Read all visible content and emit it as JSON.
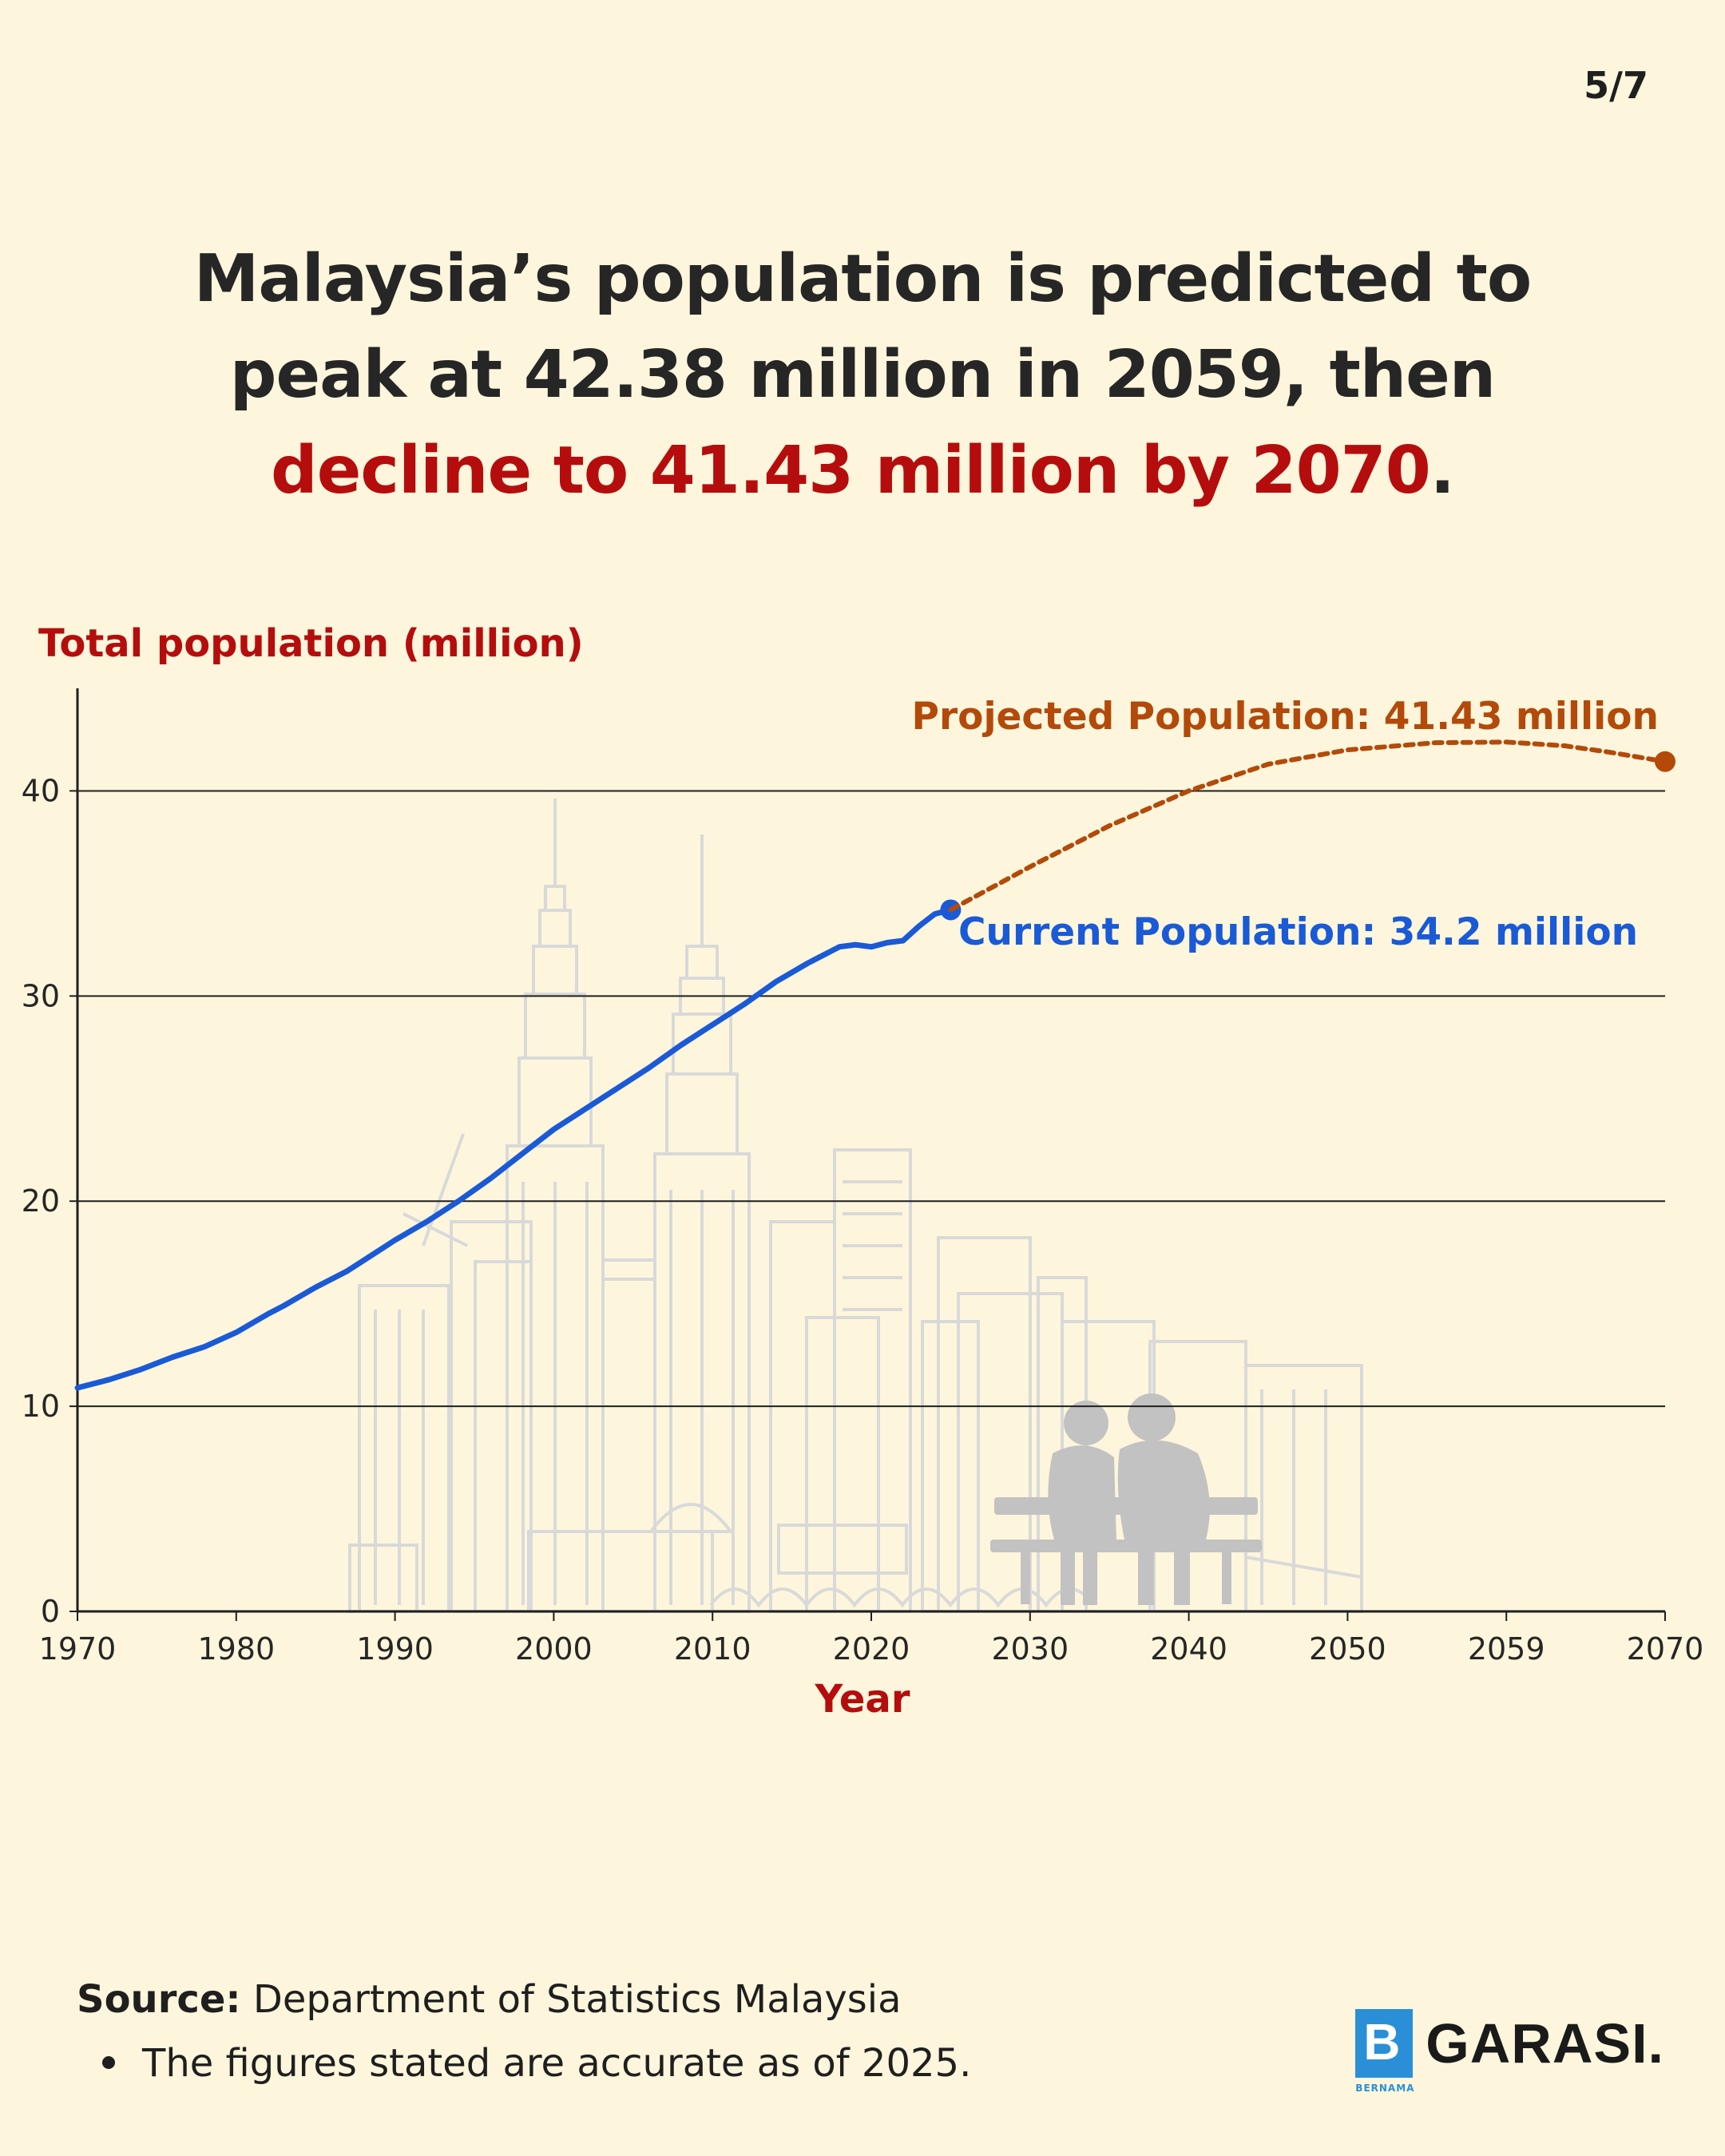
{
  "page_counter": "5/7",
  "headline": {
    "line1": "Malaysia’s population is predicted to",
    "line2": "peak at 42.38 million in 2059, then",
    "line3_red": "decline to 41.43 million by 2070",
    "line3_end": "."
  },
  "colors": {
    "background": "#fdf6dc",
    "accent_red": "#b50d0d",
    "current_line": "#1a5ad6",
    "projection_line": "#b34a0a",
    "skyline": "#d9d9d9",
    "silhouette": "#c2c2c2"
  },
  "chart_data": {
    "type": "line",
    "ylabel": "Total population (million)",
    "xlabel": "Year",
    "ylim": [
      0,
      45
    ],
    "y_ticks": [
      0,
      10,
      20,
      30,
      40
    ],
    "x_ticks": [
      "1970",
      "1980",
      "1990",
      "2000",
      "2010",
      "2020",
      "2030",
      "2040",
      "2050",
      "2059",
      "2070"
    ],
    "grid": "horizontal",
    "series": [
      {
        "name": "Current population",
        "style": "solid",
        "points": [
          [
            1970,
            10.9
          ],
          [
            1972,
            11.3
          ],
          [
            1974,
            11.8
          ],
          [
            1976,
            12.4
          ],
          [
            1978,
            12.9
          ],
          [
            1980,
            13.6
          ],
          [
            1982,
            14.5
          ],
          [
            1983,
            14.9
          ],
          [
            1985,
            15.8
          ],
          [
            1987,
            16.6
          ],
          [
            1989,
            17.6
          ],
          [
            1990,
            18.1
          ],
          [
            1992,
            19.0
          ],
          [
            1994,
            20.0
          ],
          [
            1996,
            21.1
          ],
          [
            1998,
            22.3
          ],
          [
            2000,
            23.5
          ],
          [
            2002,
            24.5
          ],
          [
            2004,
            25.5
          ],
          [
            2006,
            26.5
          ],
          [
            2008,
            27.6
          ],
          [
            2010,
            28.6
          ],
          [
            2012,
            29.6
          ],
          [
            2014,
            30.7
          ],
          [
            2016,
            31.6
          ],
          [
            2018,
            32.4
          ],
          [
            2019,
            32.5
          ],
          [
            2020,
            32.4
          ],
          [
            2021,
            32.6
          ],
          [
            2022,
            32.7
          ],
          [
            2023,
            33.4
          ],
          [
            2024,
            34.0
          ],
          [
            2025,
            34.2
          ]
        ]
      },
      {
        "name": "Projected population",
        "style": "dotted",
        "points": [
          [
            2025,
            34.2
          ],
          [
            2030,
            36.3
          ],
          [
            2035,
            38.3
          ],
          [
            2040,
            40.0
          ],
          [
            2045,
            41.3
          ],
          [
            2050,
            42.0
          ],
          [
            2055,
            42.35
          ],
          [
            2059,
            42.38
          ],
          [
            2063,
            42.2
          ],
          [
            2066,
            41.9
          ],
          [
            2070,
            41.43
          ]
        ]
      }
    ],
    "annotations": {
      "current": "Current Population: 34.2 million",
      "projected": "Projected Population: 41.43 million"
    }
  },
  "footer": {
    "source_label": "Source:",
    "source_text": "Department of Statistics Malaysia",
    "note": "The figures stated are accurate as of 2025."
  },
  "logo": {
    "brand_sub": "BERNAMA",
    "brand_text": "GARASI."
  }
}
